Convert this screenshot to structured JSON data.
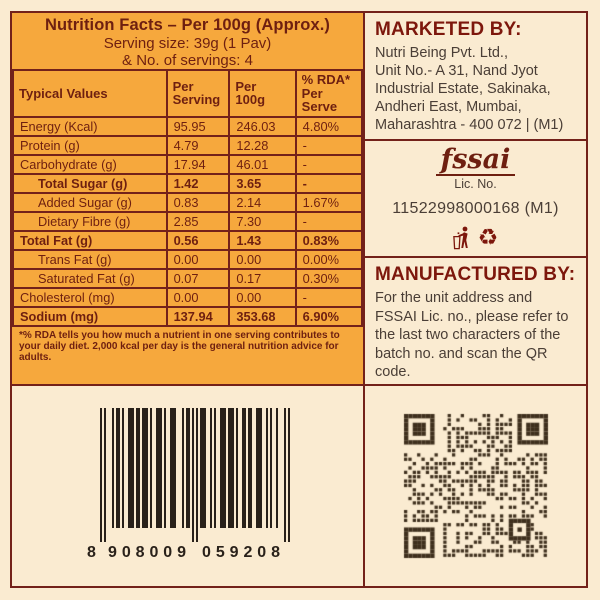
{
  "colors": {
    "cream": "#FAEBD1",
    "orange": "#F6A83D",
    "maroon": "#73211A",
    "table_text": "#6E1F10",
    "heading": "#7D170C",
    "body_text": "#4A3E36",
    "barcode_ink": "#29211A",
    "qr_ink": "#3E2F1D"
  },
  "nutrition": {
    "title": "Nutrition Facts – Per 100g (Approx.)",
    "serving_size": "Serving size: 39g (1 Pav)",
    "servings": "& No. of servings: 4",
    "columns": [
      "Typical Values",
      "Per\nServing",
      "Per\n100g",
      "% RDA*\nPer\nServe"
    ],
    "rows": [
      {
        "label": "Energy (Kcal)",
        "per_serving": "95.95",
        "per_100g": "246.03",
        "rda": "4.80%",
        "bold": false,
        "indent": false
      },
      {
        "label": "Protein (g)",
        "per_serving": "4.79",
        "per_100g": "12.28",
        "rda": "-",
        "bold": false,
        "indent": false
      },
      {
        "label": "Carbohydrate (g)",
        "per_serving": "17.94",
        "per_100g": "46.01",
        "rda": "-",
        "bold": false,
        "indent": false
      },
      {
        "label": "Total Sugar (g)",
        "per_serving": "1.42",
        "per_100g": "3.65",
        "rda": "-",
        "bold": true,
        "indent": true
      },
      {
        "label": "Added Sugar (g)",
        "per_serving": "0.83",
        "per_100g": "2.14",
        "rda": "1.67%",
        "bold": false,
        "indent": true
      },
      {
        "label": "Dietary Fibre (g)",
        "per_serving": "2.85",
        "per_100g": "7.30",
        "rda": "-",
        "bold": false,
        "indent": true
      },
      {
        "label": "Total Fat (g)",
        "per_serving": "0.56",
        "per_100g": "1.43",
        "rda": "0.83%",
        "bold": true,
        "indent": false
      },
      {
        "label": "Trans Fat (g)",
        "per_serving": "0.00",
        "per_100g": "0.00",
        "rda": "0.00%",
        "bold": false,
        "indent": true
      },
      {
        "label": "Saturated Fat (g)",
        "per_serving": "0.07",
        "per_100g": "0.17",
        "rda": "0.30%",
        "bold": false,
        "indent": true
      },
      {
        "label": "Cholesterol (mg)",
        "per_serving": "0.00",
        "per_100g": "0.00",
        "rda": "-",
        "bold": false,
        "indent": false
      },
      {
        "label": "Sodium (mg)",
        "per_serving": "137.94",
        "per_100g": "353.68",
        "rda": "6.90%",
        "bold": true,
        "indent": false
      }
    ],
    "footnote": "*% RDA tells you how much a nutrient in one serving contributes to your daily diet. 2,000 kcal per day is the general nutrition advice for adults."
  },
  "marketed_by": {
    "heading": "MARKETED BY:",
    "address_lines": [
      "Nutri Being Pvt. Ltd.,",
      "Unit No.- A 31, Nand Jyot",
      "Industrial Estate, Sakinaka,",
      "Andheri East, Mumbai,",
      "Maharashtra - 400 072 | (M1)"
    ]
  },
  "fssai": {
    "logo_text": "fssai",
    "lic_label": "Lic. No.",
    "number": "11522998000168 (M1)"
  },
  "manufactured_by": {
    "heading": "MANUFACTURED BY:",
    "text": "For the unit address and FSSAI Lic. no., please refer to the last two characters of the batch no. and scan the QR code."
  },
  "barcode": {
    "value": "8908009059208",
    "display_groups": [
      "8",
      "908009",
      "059208"
    ]
  },
  "icons": {
    "recycle_glyph": "♻",
    "tidyman": "tidyman-icon",
    "recycle": "recycle-icon"
  }
}
